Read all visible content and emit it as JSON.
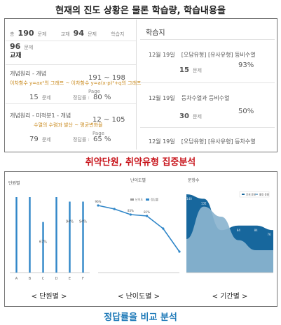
{
  "headline": "현재의 진도 상황은 물론 학습량, 학습내용을",
  "summary": {
    "total_label": "총",
    "total_value": "190",
    "total_unit": "문제",
    "textbook_label": "교재",
    "textbook_value": "94",
    "textbook_unit": "문제",
    "workbook_label": "학습지",
    "workbook_value": "96",
    "workbook_unit": "문제"
  },
  "left_section_title": "교재",
  "textbook_items": [
    {
      "title": "개념원리 - 개념",
      "pages": "191 ~ 198",
      "page_unit": "Page",
      "topic": "이차함수 y=ax²의 그래프 ~ 이차함수 y=a(x-p)²+q의 그래프",
      "count": "15",
      "count_unit": "문제",
      "rate_label": "정답률 :",
      "rate": "80 %"
    },
    {
      "title": "개념원리 - 미적분1 - 개념",
      "pages": "12 ~ 105",
      "page_unit": "Page",
      "topic": "수열의 수렴과 발산 ~ 평균변화율",
      "count": "79",
      "count_unit": "문제",
      "rate_label": "정답률 :",
      "rate": "65 %"
    }
  ],
  "right_section_title": "학습지",
  "worksheet_items": [
    {
      "date": "12월 19일",
      "title": "[오답유형] [유사유형] 등비수열",
      "count": "15",
      "count_unit": "문제",
      "rate": "93%"
    },
    {
      "date": "12월 19일",
      "title": "등차수열과 등비수열",
      "count": "30",
      "count_unit": "문제",
      "rate": "50%"
    },
    {
      "date": "12월 19일",
      "title": "[오답유형] [유사유형] 등차수열",
      "count": "",
      "count_unit": "",
      "rate": ""
    }
  ],
  "sub_heading": "취약단원, 취약유형 집중분석",
  "chart_data": [
    {
      "type": "bar",
      "title": "단원별",
      "categories": [
        "A",
        "B",
        "C",
        "D",
        "E",
        "F"
      ],
      "values": [
        100,
        100,
        67,
        100,
        94,
        94
      ],
      "data_labels": [
        "",
        "",
        "67%",
        "",
        "94%",
        "94%"
      ],
      "ylim": [
        0,
        100
      ],
      "color": "#2f86c8"
    },
    {
      "type": "line",
      "title": "난이도별",
      "legend": [
        "난이도",
        "정답률"
      ],
      "values": [
        96,
        91,
        83,
        81,
        63,
        30
      ],
      "data_labels": [
        "96%",
        "",
        "83%",
        "81%",
        "",
        ""
      ],
      "ylim": [
        0,
        100
      ],
      "color": "#2f86c8"
    },
    {
      "type": "area",
      "title": "문항수",
      "legend": [
        "전체 문항",
        "틀린 문항"
      ],
      "series": [
        {
          "name": "전체 문항",
          "values": [
            140,
            132,
            76,
            84,
            84,
            76
          ],
          "color": "#17679d"
        },
        {
          "name": "틀린 문항",
          "values": [
            60,
            118,
            100,
            58,
            40,
            40
          ],
          "color": "#8bb4cf"
        }
      ],
      "data_labels": [
        "140",
        "132",
        "",
        "84",
        "84",
        "76"
      ],
      "ylim": [
        0,
        150
      ]
    }
  ],
  "captions": [
    "< 단원별 >",
    "< 난이도별 >",
    "< 기간별 >"
  ],
  "footer_heading": "정답률을 비교 분석"
}
